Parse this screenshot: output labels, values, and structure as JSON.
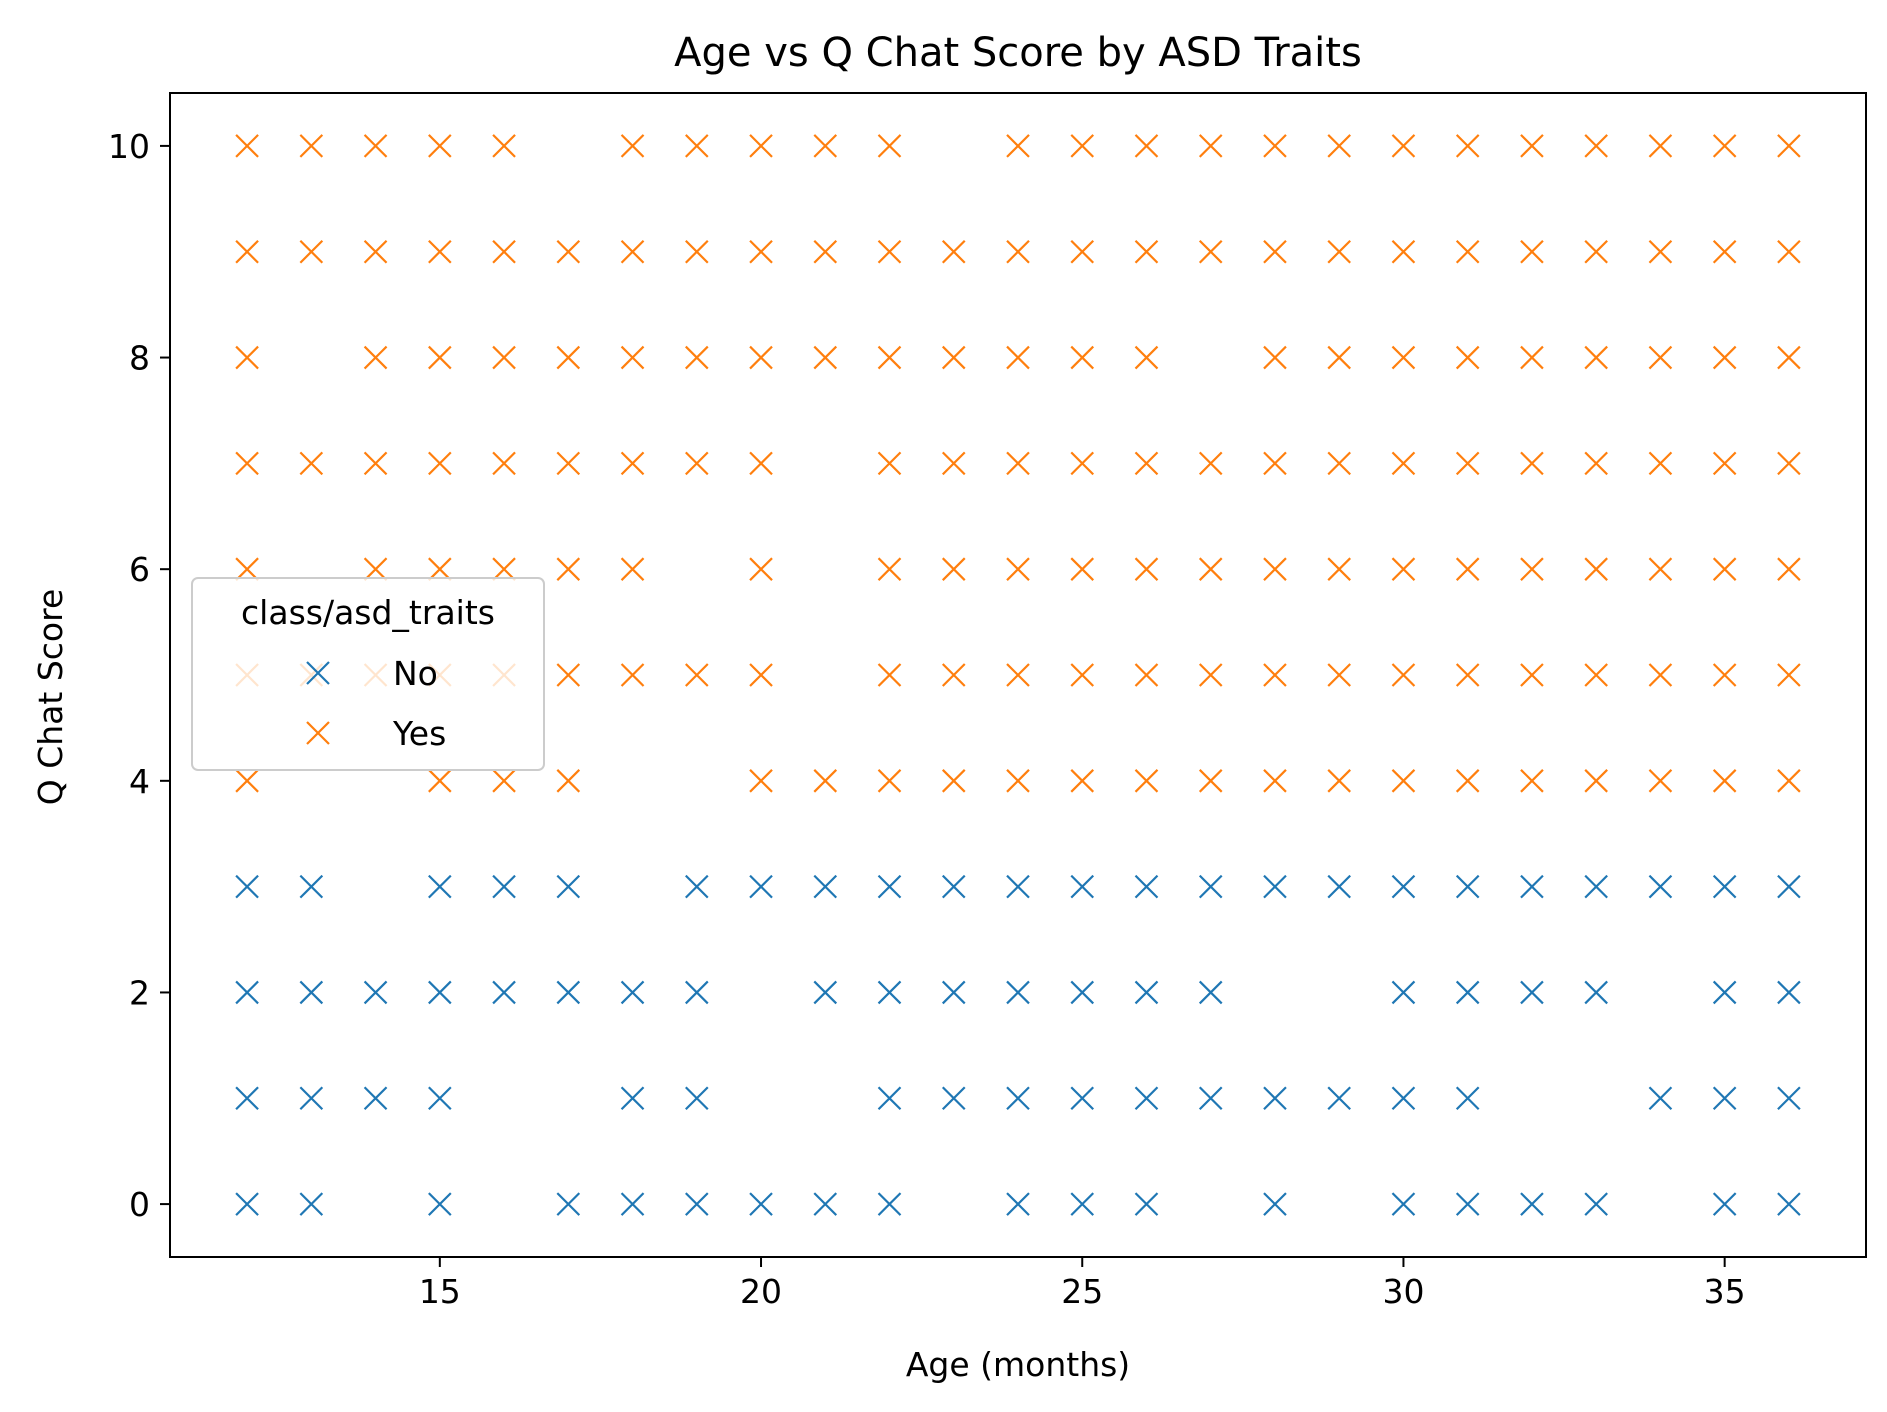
{
  "chart_data": {
    "type": "scatter",
    "title": "Age vs Q Chat Score by ASD Traits",
    "xlabel": "Age (months)",
    "ylabel": "Q Chat Score",
    "xlim": [
      10.8,
      37.2
    ],
    "ylim": [
      -0.5,
      10.5
    ],
    "x_ticks": [
      15,
      20,
      25,
      30,
      35
    ],
    "y_ticks": [
      0,
      2,
      4,
      6,
      8,
      10
    ],
    "grid": false,
    "marker": "x",
    "legend": {
      "title": "class/asd_traits",
      "placement": "center-left"
    },
    "series": [
      {
        "name": "No",
        "color": "#1f77b4",
        "points": [
          [
            12,
            0
          ],
          [
            13,
            0
          ],
          [
            15,
            0
          ],
          [
            17,
            0
          ],
          [
            18,
            0
          ],
          [
            19,
            0
          ],
          [
            20,
            0
          ],
          [
            21,
            0
          ],
          [
            22,
            0
          ],
          [
            24,
            0
          ],
          [
            25,
            0
          ],
          [
            26,
            0
          ],
          [
            28,
            0
          ],
          [
            30,
            0
          ],
          [
            31,
            0
          ],
          [
            32,
            0
          ],
          [
            33,
            0
          ],
          [
            35,
            0
          ],
          [
            36,
            0
          ],
          [
            12,
            1
          ],
          [
            13,
            1
          ],
          [
            14,
            1
          ],
          [
            15,
            1
          ],
          [
            18,
            1
          ],
          [
            19,
            1
          ],
          [
            22,
            1
          ],
          [
            23,
            1
          ],
          [
            24,
            1
          ],
          [
            25,
            1
          ],
          [
            26,
            1
          ],
          [
            27,
            1
          ],
          [
            28,
            1
          ],
          [
            29,
            1
          ],
          [
            30,
            1
          ],
          [
            31,
            1
          ],
          [
            34,
            1
          ],
          [
            35,
            1
          ],
          [
            36,
            1
          ],
          [
            12,
            2
          ],
          [
            13,
            2
          ],
          [
            14,
            2
          ],
          [
            15,
            2
          ],
          [
            16,
            2
          ],
          [
            17,
            2
          ],
          [
            18,
            2
          ],
          [
            19,
            2
          ],
          [
            21,
            2
          ],
          [
            22,
            2
          ],
          [
            23,
            2
          ],
          [
            24,
            2
          ],
          [
            25,
            2
          ],
          [
            26,
            2
          ],
          [
            27,
            2
          ],
          [
            30,
            2
          ],
          [
            31,
            2
          ],
          [
            32,
            2
          ],
          [
            33,
            2
          ],
          [
            35,
            2
          ],
          [
            36,
            2
          ],
          [
            12,
            3
          ],
          [
            13,
            3
          ],
          [
            15,
            3
          ],
          [
            16,
            3
          ],
          [
            17,
            3
          ],
          [
            19,
            3
          ],
          [
            20,
            3
          ],
          [
            21,
            3
          ],
          [
            22,
            3
          ],
          [
            23,
            3
          ],
          [
            24,
            3
          ],
          [
            25,
            3
          ],
          [
            26,
            3
          ],
          [
            27,
            3
          ],
          [
            28,
            3
          ],
          [
            29,
            3
          ],
          [
            30,
            3
          ],
          [
            31,
            3
          ],
          [
            32,
            3
          ],
          [
            33,
            3
          ],
          [
            34,
            3
          ],
          [
            35,
            3
          ],
          [
            36,
            3
          ]
        ]
      },
      {
        "name": "Yes",
        "color": "#ff7f0e",
        "points": [
          [
            12,
            4
          ],
          [
            15,
            4
          ],
          [
            16,
            4
          ],
          [
            17,
            4
          ],
          [
            20,
            4
          ],
          [
            21,
            4
          ],
          [
            22,
            4
          ],
          [
            23,
            4
          ],
          [
            24,
            4
          ],
          [
            25,
            4
          ],
          [
            26,
            4
          ],
          [
            27,
            4
          ],
          [
            28,
            4
          ],
          [
            29,
            4
          ],
          [
            30,
            4
          ],
          [
            31,
            4
          ],
          [
            32,
            4
          ],
          [
            33,
            4
          ],
          [
            34,
            4
          ],
          [
            35,
            4
          ],
          [
            36,
            4
          ],
          [
            12,
            5
          ],
          [
            13,
            5
          ],
          [
            14,
            5
          ],
          [
            15,
            5
          ],
          [
            16,
            5
          ],
          [
            17,
            5
          ],
          [
            18,
            5
          ],
          [
            19,
            5
          ],
          [
            20,
            5
          ],
          [
            22,
            5
          ],
          [
            23,
            5
          ],
          [
            24,
            5
          ],
          [
            25,
            5
          ],
          [
            26,
            5
          ],
          [
            27,
            5
          ],
          [
            28,
            5
          ],
          [
            29,
            5
          ],
          [
            30,
            5
          ],
          [
            31,
            5
          ],
          [
            32,
            5
          ],
          [
            33,
            5
          ],
          [
            34,
            5
          ],
          [
            35,
            5
          ],
          [
            36,
            5
          ],
          [
            12,
            6
          ],
          [
            14,
            6
          ],
          [
            15,
            6
          ],
          [
            16,
            6
          ],
          [
            17,
            6
          ],
          [
            18,
            6
          ],
          [
            20,
            6
          ],
          [
            22,
            6
          ],
          [
            23,
            6
          ],
          [
            24,
            6
          ],
          [
            25,
            6
          ],
          [
            26,
            6
          ],
          [
            27,
            6
          ],
          [
            28,
            6
          ],
          [
            29,
            6
          ],
          [
            30,
            6
          ],
          [
            31,
            6
          ],
          [
            32,
            6
          ],
          [
            33,
            6
          ],
          [
            34,
            6
          ],
          [
            35,
            6
          ],
          [
            36,
            6
          ],
          [
            12,
            7
          ],
          [
            13,
            7
          ],
          [
            14,
            7
          ],
          [
            15,
            7
          ],
          [
            16,
            7
          ],
          [
            17,
            7
          ],
          [
            18,
            7
          ],
          [
            19,
            7
          ],
          [
            20,
            7
          ],
          [
            22,
            7
          ],
          [
            23,
            7
          ],
          [
            24,
            7
          ],
          [
            25,
            7
          ],
          [
            26,
            7
          ],
          [
            27,
            7
          ],
          [
            28,
            7
          ],
          [
            29,
            7
          ],
          [
            30,
            7
          ],
          [
            31,
            7
          ],
          [
            32,
            7
          ],
          [
            33,
            7
          ],
          [
            34,
            7
          ],
          [
            35,
            7
          ],
          [
            36,
            7
          ],
          [
            12,
            8
          ],
          [
            14,
            8
          ],
          [
            15,
            8
          ],
          [
            16,
            8
          ],
          [
            17,
            8
          ],
          [
            18,
            8
          ],
          [
            19,
            8
          ],
          [
            20,
            8
          ],
          [
            21,
            8
          ],
          [
            22,
            8
          ],
          [
            23,
            8
          ],
          [
            24,
            8
          ],
          [
            25,
            8
          ],
          [
            26,
            8
          ],
          [
            28,
            8
          ],
          [
            29,
            8
          ],
          [
            30,
            8
          ],
          [
            31,
            8
          ],
          [
            32,
            8
          ],
          [
            33,
            8
          ],
          [
            34,
            8
          ],
          [
            35,
            8
          ],
          [
            36,
            8
          ],
          [
            12,
            9
          ],
          [
            13,
            9
          ],
          [
            14,
            9
          ],
          [
            15,
            9
          ],
          [
            16,
            9
          ],
          [
            17,
            9
          ],
          [
            18,
            9
          ],
          [
            19,
            9
          ],
          [
            20,
            9
          ],
          [
            21,
            9
          ],
          [
            22,
            9
          ],
          [
            23,
            9
          ],
          [
            24,
            9
          ],
          [
            25,
            9
          ],
          [
            26,
            9
          ],
          [
            27,
            9
          ],
          [
            28,
            9
          ],
          [
            29,
            9
          ],
          [
            30,
            9
          ],
          [
            31,
            9
          ],
          [
            32,
            9
          ],
          [
            33,
            9
          ],
          [
            34,
            9
          ],
          [
            35,
            9
          ],
          [
            36,
            9
          ],
          [
            12,
            10
          ],
          [
            13,
            10
          ],
          [
            14,
            10
          ],
          [
            15,
            10
          ],
          [
            16,
            10
          ],
          [
            18,
            10
          ],
          [
            19,
            10
          ],
          [
            20,
            10
          ],
          [
            21,
            10
          ],
          [
            22,
            10
          ],
          [
            24,
            10
          ],
          [
            25,
            10
          ],
          [
            26,
            10
          ],
          [
            27,
            10
          ],
          [
            28,
            10
          ],
          [
            29,
            10
          ],
          [
            30,
            10
          ],
          [
            31,
            10
          ],
          [
            32,
            10
          ],
          [
            33,
            10
          ],
          [
            34,
            10
          ],
          [
            35,
            10
          ],
          [
            36,
            10
          ]
        ]
      }
    ]
  }
}
